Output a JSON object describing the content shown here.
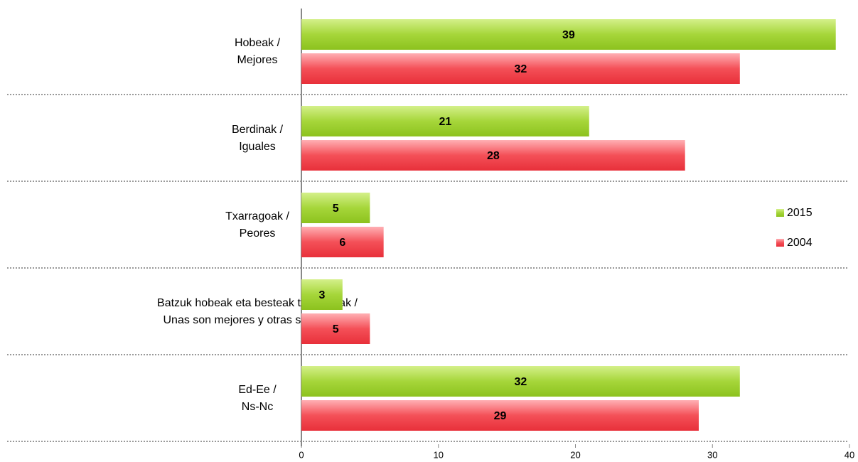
{
  "chart_data": {
    "type": "bar",
    "orientation": "horizontal",
    "categories": [
      [
        "Hobeak /",
        "Mejores"
      ],
      [
        "Berdinak /",
        "Iguales"
      ],
      [
        "Txarragoak /",
        "Peores"
      ],
      [
        "Batzuk hobeak eta besteak txarragoak /",
        "Unas son mejores y otras son peores"
      ],
      [
        "Ed-Ee /",
        "Ns-Nc"
      ]
    ],
    "series": [
      {
        "name": "2015",
        "color": "#9ccc2c",
        "values": [
          39,
          21,
          5,
          3,
          32
        ]
      },
      {
        "name": "2004",
        "color": "#f0424c",
        "values": [
          32,
          28,
          6,
          5,
          29
        ]
      }
    ],
    "xlim": [
      0,
      40
    ],
    "xticks": [
      0,
      10,
      20,
      30,
      40
    ],
    "legend": "right"
  }
}
